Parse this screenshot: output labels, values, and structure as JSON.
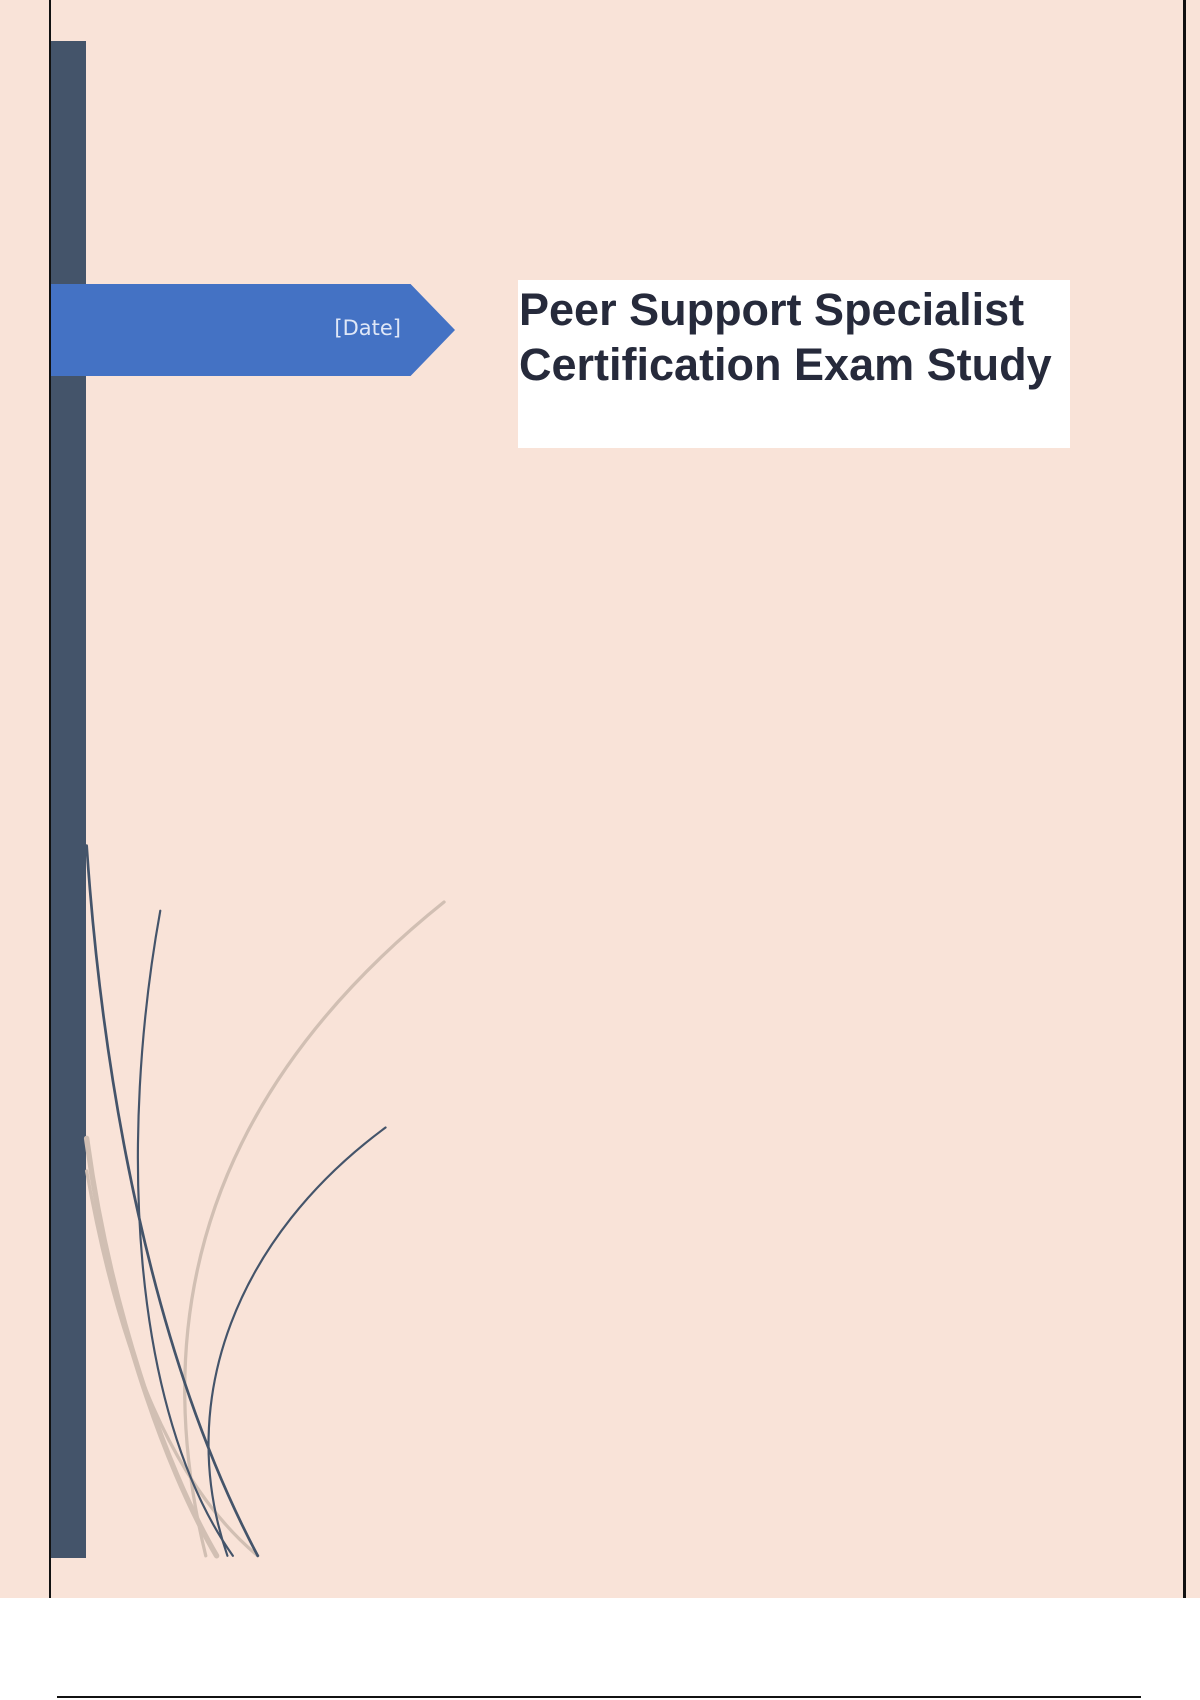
{
  "cover": {
    "date_placeholder": "[Date]",
    "title": "Peer Support Specialist Certification Exam Study"
  },
  "colors": {
    "page_background": "#f9e3d8",
    "sidebar_bar": "#44546a",
    "date_arrow": "#4472c4",
    "title_text": "#262a3b"
  }
}
